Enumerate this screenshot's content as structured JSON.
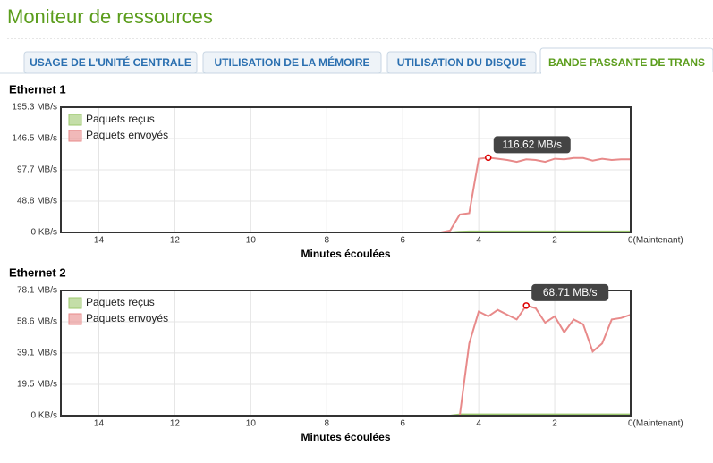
{
  "title": "Moniteur de ressources",
  "tabs": [
    "USAGE DE L'UNITÉ CENTRALE",
    "UTILISATION DE LA MÉMOIRE",
    "UTILISATION DU DISQUE",
    "BANDE PASSANTE DE TRANS"
  ],
  "active_tab": 3,
  "chart_data": [
    {
      "type": "line",
      "title": "Ethernet 1",
      "xlabel": "Minutes écoulées",
      "x": [
        7.25,
        7,
        6.75,
        6.5,
        6.25,
        6,
        5.75,
        5.5,
        5.25,
        5,
        4.75,
        4.5,
        4.25,
        4,
        3.75,
        3.5,
        3.25,
        3,
        2.75,
        2.5,
        2.25,
        2,
        1.75,
        1.5,
        1.25,
        1,
        0.75,
        0.5,
        0.25,
        0
      ],
      "series": [
        {
          "name": "Paquets reçus",
          "color": "#9cc86e",
          "values": [
            0,
            0,
            0,
            0,
            0,
            0,
            0,
            0,
            0,
            0,
            0,
            1,
            1.5,
            1.5,
            1.5,
            1.5,
            1.5,
            1.5,
            1.5,
            1.5,
            1.5,
            1.5,
            1.5,
            1.5,
            1.5,
            1.5,
            1.5,
            1.5,
            1.5,
            1.5
          ]
        },
        {
          "name": "Paquets envoyés",
          "color": "#e88a8a",
          "values": [
            0,
            0,
            0,
            0,
            0,
            0,
            0,
            0,
            0,
            0,
            3,
            28,
            30,
            115,
            116.62,
            115,
            113,
            110,
            114,
            113,
            110,
            115,
            114,
            116,
            116,
            112,
            115,
            113,
            114,
            114
          ]
        }
      ],
      "xlim": [
        15,
        0
      ],
      "xticks": [
        14,
        12,
        10,
        8,
        6,
        4,
        2,
        {
          "value": 0,
          "label": "0(Maintenant)"
        }
      ],
      "ylim": [
        0,
        195.3
      ],
      "yticks": [
        {
          "value": 0,
          "label": "0 KB/s"
        },
        {
          "value": 48.8,
          "label": "48.8 MB/s"
        },
        {
          "value": 97.7,
          "label": "97.7 MB/s"
        },
        {
          "value": 146.5,
          "label": "146.5 MB/s"
        },
        {
          "value": 195.3,
          "label": "195.3 MB/s"
        }
      ],
      "grid": true,
      "legend": "top-left",
      "annotations": [
        {
          "x": 3.75,
          "y": 116.62,
          "label": "116.62 MB/s"
        }
      ]
    },
    {
      "type": "line",
      "title": "Ethernet 2",
      "xlabel": "Minutes écoulées",
      "x": [
        7.25,
        7,
        6.75,
        6.5,
        6.25,
        6,
        5.75,
        5.5,
        5.25,
        5,
        4.75,
        4.5,
        4.25,
        4,
        3.75,
        3.5,
        3.25,
        3,
        2.75,
        2.5,
        2.25,
        2,
        1.75,
        1.5,
        1.25,
        1,
        0.75,
        0.5,
        0.25,
        0
      ],
      "series": [
        {
          "name": "Paquets reçus",
          "color": "#9cc86e",
          "values": [
            0,
            0,
            0,
            0,
            0,
            0,
            0,
            0,
            0,
            0,
            0,
            0.8,
            0.8,
            0.8,
            0.8,
            0.8,
            0.8,
            0.8,
            0.8,
            0.8,
            0.8,
            0.8,
            0.8,
            0.8,
            0.8,
            0.8,
            0.8,
            0.8,
            0.8,
            0.8
          ]
        },
        {
          "name": "Paquets envoyés",
          "color": "#e88a8a",
          "values": [
            0,
            0,
            0,
            0,
            0,
            0,
            0,
            0,
            0,
            0,
            0,
            0,
            45,
            65,
            62,
            66,
            63,
            60,
            68.71,
            67,
            58,
            62,
            52,
            60,
            57,
            40,
            45,
            60,
            61,
            63
          ]
        }
      ],
      "xlim": [
        15,
        0
      ],
      "xticks": [
        14,
        12,
        10,
        8,
        6,
        4,
        2,
        {
          "value": 0,
          "label": "0(Maintenant)"
        }
      ],
      "ylim": [
        0,
        78.1
      ],
      "yticks": [
        {
          "value": 0,
          "label": "0 KB/s"
        },
        {
          "value": 19.5,
          "label": "19.5 MB/s"
        },
        {
          "value": 39.1,
          "label": "39.1 MB/s"
        },
        {
          "value": 58.6,
          "label": "58.6 MB/s"
        },
        {
          "value": 78.1,
          "label": "78.1 MB/s"
        }
      ],
      "grid": true,
      "legend": "top-left",
      "annotations": [
        {
          "x": 2.75,
          "y": 68.71,
          "label": "68.71 MB/s"
        }
      ]
    }
  ]
}
